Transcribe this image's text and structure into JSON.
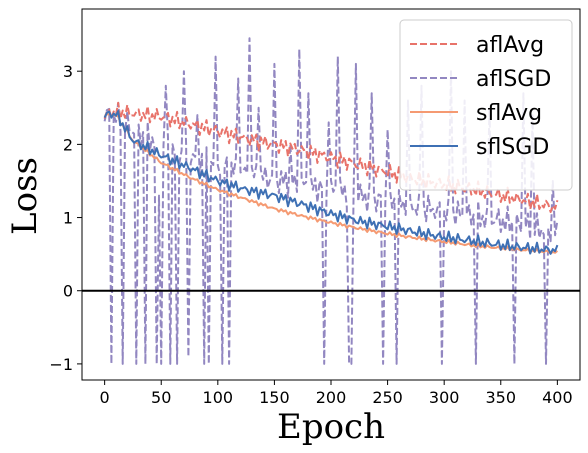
{
  "chart_data": {
    "type": "line",
    "xlabel": "Epoch",
    "ylabel": "Loss",
    "xlim": [
      -20,
      420
    ],
    "ylim": [
      -1.22,
      3.85
    ],
    "xticks": [
      0,
      50,
      100,
      150,
      200,
      250,
      300,
      350,
      400
    ],
    "yticks": [
      -1,
      0,
      1,
      2,
      3
    ],
    "hline": 0,
    "legend_position": "top-right",
    "series": [
      {
        "name": "aflAvg",
        "color": "#e8736a",
        "style": "dashed",
        "x": [
          0,
          10,
          25,
          50,
          75,
          100,
          125,
          150,
          175,
          200,
          225,
          250,
          275,
          300,
          325,
          350,
          375,
          400
        ],
        "y": [
          2.4,
          2.45,
          2.42,
          2.38,
          2.28,
          2.18,
          2.08,
          2.0,
          1.92,
          1.82,
          1.72,
          1.62,
          1.52,
          1.45,
          1.38,
          1.3,
          1.22,
          1.13
        ]
      },
      {
        "name": "aflSGD",
        "color": "#9287c1",
        "style": "dashed",
        "x": [
          0,
          10,
          25,
          50,
          75,
          100,
          125,
          150,
          175,
          200,
          225,
          250,
          275,
          300,
          325,
          350,
          375,
          400
        ],
        "y": [
          2.4,
          2.38,
          2.2,
          2.0,
          1.85,
          1.72,
          1.6,
          1.52,
          1.45,
          1.38,
          1.3,
          1.22,
          1.15,
          1.08,
          1.02,
          0.95,
          0.88,
          0.78
        ],
        "spikes": [
          {
            "x": 5,
            "y": -1.0
          },
          {
            "x": 15,
            "y": -1.0
          },
          {
            "x": 27,
            "y": -1.0
          },
          {
            "x": 35,
            "y": -1.0
          },
          {
            "x": 45,
            "y": -1.0
          },
          {
            "x": 47,
            "y": 1.3
          },
          {
            "x": 50,
            "y": -1.0
          },
          {
            "x": 53,
            "y": 2.8
          },
          {
            "x": 57,
            "y": -1.0
          },
          {
            "x": 63,
            "y": -1.0
          },
          {
            "x": 70,
            "y": 3.0
          },
          {
            "x": 73,
            "y": -0.9
          },
          {
            "x": 82,
            "y": 2.4
          },
          {
            "x": 87,
            "y": -1.0
          },
          {
            "x": 92,
            "y": -1.0
          },
          {
            "x": 97,
            "y": 3.2
          },
          {
            "x": 103,
            "y": -1.0
          },
          {
            "x": 110,
            "y": -1.0
          },
          {
            "x": 117,
            "y": 2.9
          },
          {
            "x": 128,
            "y": 3.45
          },
          {
            "x": 135,
            "y": 2.5
          },
          {
            "x": 150,
            "y": 3.1
          },
          {
            "x": 163,
            "y": 2.0
          },
          {
            "x": 171,
            "y": 3.3
          },
          {
            "x": 180,
            "y": 2.7
          },
          {
            "x": 193,
            "y": -1.0
          },
          {
            "x": 197,
            "y": 2.3
          },
          {
            "x": 205,
            "y": 3.2
          },
          {
            "x": 215,
            "y": -1.0
          },
          {
            "x": 218,
            "y": -1.0
          },
          {
            "x": 222,
            "y": 3.1
          },
          {
            "x": 235,
            "y": 2.7
          },
          {
            "x": 245,
            "y": -1.0
          },
          {
            "x": 250,
            "y": 2.2
          },
          {
            "x": 258,
            "y": -1.0
          },
          {
            "x": 268,
            "y": 2.6
          },
          {
            "x": 280,
            "y": 2.8
          },
          {
            "x": 298,
            "y": -1.0
          },
          {
            "x": 305,
            "y": 3.0
          },
          {
            "x": 318,
            "y": 2.6
          },
          {
            "x": 328,
            "y": -1.0
          },
          {
            "x": 340,
            "y": 2.5
          },
          {
            "x": 362,
            "y": -1.0
          },
          {
            "x": 370,
            "y": 2.7
          },
          {
            "x": 378,
            "y": 2.4
          },
          {
            "x": 390,
            "y": -1.0
          },
          {
            "x": 395,
            "y": 1.5
          }
        ]
      },
      {
        "name": "sflAvg",
        "color": "#f59a72",
        "style": "solid",
        "x": [
          0,
          10,
          25,
          50,
          75,
          100,
          125,
          150,
          175,
          200,
          225,
          250,
          275,
          300,
          325,
          350,
          375,
          400
        ],
        "y": [
          2.4,
          2.4,
          2.05,
          1.75,
          1.55,
          1.38,
          1.25,
          1.12,
          1.02,
          0.93,
          0.85,
          0.78,
          0.72,
          0.67,
          0.62,
          0.58,
          0.55,
          0.52
        ]
      },
      {
        "name": "sflSGD",
        "color": "#3e70b4",
        "style": "solid",
        "x": [
          0,
          10,
          25,
          50,
          75,
          100,
          125,
          150,
          175,
          200,
          225,
          250,
          275,
          300,
          325,
          350,
          375,
          400
        ],
        "y": [
          2.4,
          2.42,
          2.05,
          1.85,
          1.68,
          1.5,
          1.38,
          1.3,
          1.18,
          1.05,
          0.95,
          0.88,
          0.8,
          0.73,
          0.68,
          0.62,
          0.58,
          0.55
        ]
      }
    ]
  }
}
